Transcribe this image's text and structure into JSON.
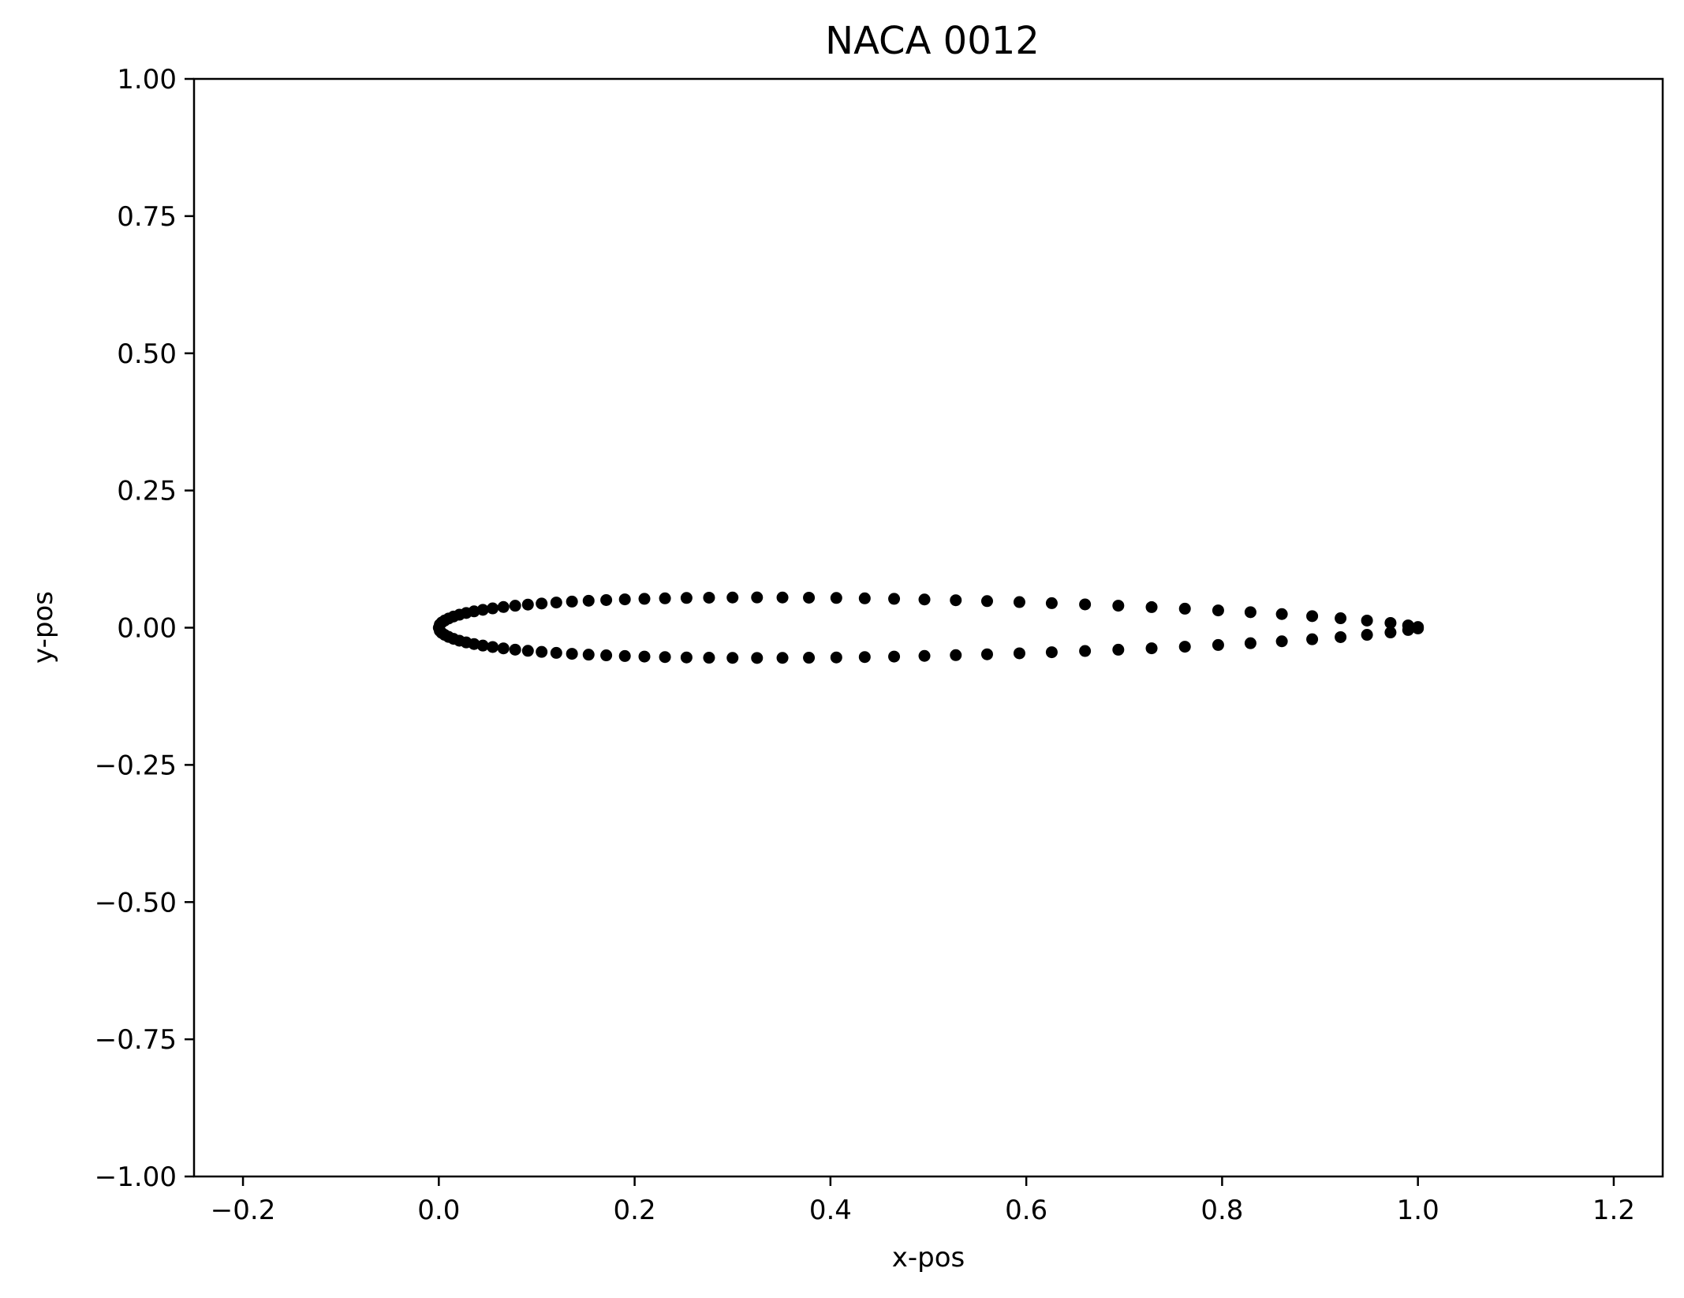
{
  "chart_data": {
    "type": "scatter",
    "title": "NACA 0012",
    "xlabel": "x-pos",
    "ylabel": "y-pos",
    "xlim": [
      -0.25,
      1.25
    ],
    "ylim": [
      -1.0,
      1.0
    ],
    "xticks": [
      -0.2,
      0.0,
      0.2,
      0.4,
      0.6,
      0.8,
      1.0,
      1.2
    ],
    "xtick_labels": [
      "−0.2",
      "0.0",
      "0.2",
      "0.4",
      "0.6",
      "0.8",
      "1.0",
      "1.2"
    ],
    "yticks": [
      1.0,
      0.75,
      0.5,
      0.25,
      0.0,
      -0.25,
      -0.5,
      -0.75,
      -1.0
    ],
    "ytick_labels": [
      "1.00",
      "0.75",
      "0.50",
      "0.25",
      "0.00",
      "−0.25",
      "−0.50",
      "−0.75",
      "−1.00"
    ],
    "grid": false,
    "marker_color": "#000000",
    "series": [
      {
        "values": [
          [
            0.0,
            0.0
          ],
          [
            0.001,
            0.0056
          ],
          [
            0.003,
            0.0095
          ],
          [
            0.006,
            0.0131
          ],
          [
            0.01,
            0.0168
          ],
          [
            0.015,
            0.0203
          ],
          [
            0.021,
            0.0237
          ],
          [
            0.028,
            0.0268
          ],
          [
            0.036,
            0.0298
          ],
          [
            0.045,
            0.0326
          ],
          [
            0.055,
            0.0352
          ],
          [
            0.066,
            0.0377
          ],
          [
            0.078,
            0.04
          ],
          [
            0.091,
            0.0421
          ],
          [
            0.105,
            0.0441
          ],
          [
            0.12,
            0.0459
          ],
          [
            0.136,
            0.0476
          ],
          [
            0.153,
            0.0491
          ],
          [
            0.171,
            0.0504
          ],
          [
            0.19,
            0.0516
          ],
          [
            0.21,
            0.0526
          ],
          [
            0.231,
            0.0535
          ],
          [
            0.253,
            0.0542
          ],
          [
            0.276,
            0.0547
          ],
          [
            0.3,
            0.055
          ],
          [
            0.325,
            0.0551
          ],
          [
            0.351,
            0.055
          ],
          [
            0.378,
            0.0547
          ],
          [
            0.406,
            0.0542
          ],
          [
            0.435,
            0.0535
          ],
          [
            0.465,
            0.0526
          ],
          [
            0.496,
            0.0514
          ],
          [
            0.528,
            0.05
          ],
          [
            0.56,
            0.0485
          ],
          [
            0.593,
            0.0467
          ],
          [
            0.626,
            0.0447
          ],
          [
            0.66,
            0.0425
          ],
          [
            0.694,
            0.0401
          ],
          [
            0.728,
            0.0375
          ],
          [
            0.762,
            0.0346
          ],
          [
            0.796,
            0.0315
          ],
          [
            0.829,
            0.0283
          ],
          [
            0.861,
            0.0248
          ],
          [
            0.892,
            0.0211
          ],
          [
            0.921,
            0.0172
          ],
          [
            0.948,
            0.013
          ],
          [
            0.972,
            0.0087
          ],
          [
            0.99,
            0.0042
          ],
          [
            1.0,
            0.0013
          ],
          [
            1.0,
            -0.0013
          ],
          [
            0.99,
            -0.0042
          ],
          [
            0.972,
            -0.0087
          ],
          [
            0.948,
            -0.013
          ],
          [
            0.921,
            -0.0172
          ],
          [
            0.892,
            -0.0211
          ],
          [
            0.861,
            -0.0248
          ],
          [
            0.829,
            -0.0283
          ],
          [
            0.796,
            -0.0315
          ],
          [
            0.762,
            -0.0346
          ],
          [
            0.728,
            -0.0375
          ],
          [
            0.694,
            -0.0401
          ],
          [
            0.66,
            -0.0425
          ],
          [
            0.626,
            -0.0447
          ],
          [
            0.593,
            -0.0467
          ],
          [
            0.56,
            -0.0485
          ],
          [
            0.528,
            -0.05
          ],
          [
            0.496,
            -0.0514
          ],
          [
            0.465,
            -0.0526
          ],
          [
            0.435,
            -0.0535
          ],
          [
            0.406,
            -0.0542
          ],
          [
            0.378,
            -0.0547
          ],
          [
            0.351,
            -0.055
          ],
          [
            0.325,
            -0.0551
          ],
          [
            0.3,
            -0.055
          ],
          [
            0.276,
            -0.0547
          ],
          [
            0.253,
            -0.0542
          ],
          [
            0.231,
            -0.0535
          ],
          [
            0.21,
            -0.0526
          ],
          [
            0.19,
            -0.0516
          ],
          [
            0.171,
            -0.0504
          ],
          [
            0.153,
            -0.0491
          ],
          [
            0.136,
            -0.0476
          ],
          [
            0.12,
            -0.0459
          ],
          [
            0.105,
            -0.0441
          ],
          [
            0.091,
            -0.0421
          ],
          [
            0.078,
            -0.04
          ],
          [
            0.066,
            -0.0377
          ],
          [
            0.055,
            -0.0352
          ],
          [
            0.045,
            -0.0326
          ],
          [
            0.036,
            -0.0298
          ],
          [
            0.028,
            -0.0268
          ],
          [
            0.021,
            -0.0237
          ],
          [
            0.015,
            -0.0203
          ],
          [
            0.01,
            -0.0168
          ],
          [
            0.006,
            -0.0131
          ],
          [
            0.003,
            -0.0095
          ],
          [
            0.001,
            -0.0056
          ]
        ]
      }
    ]
  }
}
